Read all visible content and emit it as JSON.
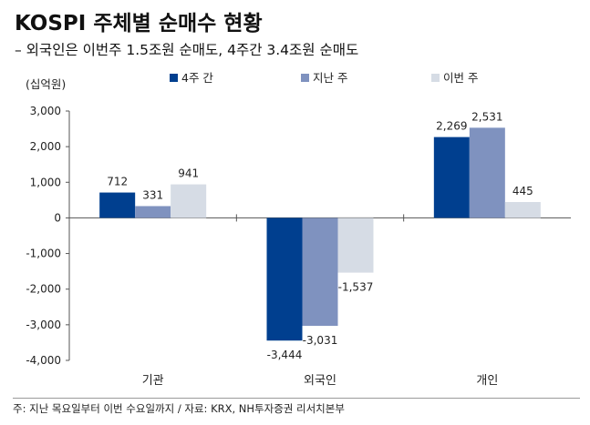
{
  "title": "KOSPI 주체별 순매수 현황",
  "subtitle": "– 외국인은 이번주 1.5조원 순매도, 4주간 3.4조원 순매도",
  "unit_label": "(십억원)",
  "note": "주: 지난 목요일부터 이번 수요일까지 / 자료: KRX, NH투자증권 리서치본부",
  "chart_data": {
    "type": "bar",
    "categories": [
      "기관",
      "외국인",
      "개인"
    ],
    "series": [
      {
        "name": "4주 간",
        "color": "#003f8f",
        "values": [
          712,
          -3444,
          2269
        ],
        "labels": [
          "712",
          "-3,444",
          "2,269"
        ]
      },
      {
        "name": "지난 주",
        "color": "#7f92bf",
        "values": [
          331,
          -3031,
          2531
        ],
        "labels": [
          "331",
          "-3,031",
          "2,531"
        ]
      },
      {
        "name": "이번 주",
        "color": "#d6dce5",
        "values": [
          941,
          -1537,
          445
        ],
        "labels": [
          "941",
          "-1,537",
          "445"
        ]
      }
    ],
    "yticks": [
      3000,
      2000,
      1000,
      0,
      -1000,
      -2000,
      -3000,
      -4000
    ],
    "ytick_labels": [
      "3,000",
      "2,000",
      "1,000",
      "0",
      "-1,000",
      "-2,000",
      "-3,000",
      "-4,000"
    ],
    "ylim": [
      -4000,
      3000
    ],
    "legend_position": "top"
  }
}
